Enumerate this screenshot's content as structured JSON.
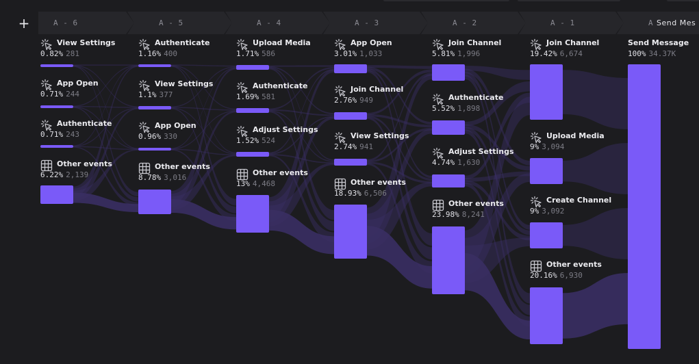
{
  "toolbar": {
    "add_label": "+"
  },
  "steps": [
    {
      "label": "A - 6"
    },
    {
      "label": "A - 5"
    },
    {
      "label": "A - 4"
    },
    {
      "label": "A - 3"
    },
    {
      "label": "A - 2"
    },
    {
      "label": "A - 1"
    },
    {
      "label": "A",
      "title": "Send Mes"
    }
  ],
  "columns": [
    {
      "nodes": [
        {
          "name": "View Settings",
          "pct": "0.82%",
          "count": "281",
          "icon": "click-icon"
        },
        {
          "name": "App Open",
          "pct": "0.71%",
          "count": "244",
          "icon": "click-icon"
        },
        {
          "name": "Authenticate",
          "pct": "0.71%",
          "count": "243",
          "icon": "click-icon"
        },
        {
          "name": "Other events",
          "pct": "6.22%",
          "count": "2,139",
          "icon": "grid-icon"
        }
      ]
    },
    {
      "nodes": [
        {
          "name": "Authenticate",
          "pct": "1.16%",
          "count": "400",
          "icon": "click-icon"
        },
        {
          "name": "View Settings",
          "pct": "1.1%",
          "count": "377",
          "icon": "click-icon"
        },
        {
          "name": "App Open",
          "pct": "0.96%",
          "count": "330",
          "icon": "click-icon"
        },
        {
          "name": "Other events",
          "pct": "8.78%",
          "count": "3,016",
          "icon": "grid-icon"
        }
      ]
    },
    {
      "nodes": [
        {
          "name": "Upload Media",
          "pct": "1.71%",
          "count": "586",
          "icon": "click-icon"
        },
        {
          "name": "Authenticate",
          "pct": "1.69%",
          "count": "581",
          "icon": "click-icon"
        },
        {
          "name": "Adjust Settings",
          "pct": "1.52%",
          "count": "524",
          "icon": "click-icon"
        },
        {
          "name": "Other events",
          "pct": "13%",
          "count": "4,468",
          "icon": "grid-icon"
        }
      ]
    },
    {
      "nodes": [
        {
          "name": "App Open",
          "pct": "3.01%",
          "count": "1,033",
          "icon": "click-icon"
        },
        {
          "name": "Join Channel",
          "pct": "2.76%",
          "count": "949",
          "icon": "click-icon"
        },
        {
          "name": "View Settings",
          "pct": "2.74%",
          "count": "941",
          "icon": "click-icon"
        },
        {
          "name": "Other events",
          "pct": "18.93%",
          "count": "6,506",
          "icon": "grid-icon"
        }
      ]
    },
    {
      "nodes": [
        {
          "name": "Join Channel",
          "pct": "5.81%",
          "count": "1,996",
          "icon": "click-icon"
        },
        {
          "name": "Authenticate",
          "pct": "5.52%",
          "count": "1,898",
          "icon": "click-icon"
        },
        {
          "name": "Adjust Settings",
          "pct": "4.74%",
          "count": "1,630",
          "icon": "click-icon"
        },
        {
          "name": "Other events",
          "pct": "23.98%",
          "count": "8,241",
          "icon": "grid-icon"
        }
      ]
    },
    {
      "nodes": [
        {
          "name": "Join Channel",
          "pct": "19.42%",
          "count": "6,674",
          "icon": "click-icon"
        },
        {
          "name": "Upload Media",
          "pct": "9%",
          "count": "3,094",
          "icon": "click-icon"
        },
        {
          "name": "Create Channel",
          "pct": "9%",
          "count": "3,092",
          "icon": "click-icon"
        },
        {
          "name": "Other events",
          "pct": "20.16%",
          "count": "6,930",
          "icon": "grid-icon"
        }
      ]
    },
    {
      "nodes": [
        {
          "name": "Send Message",
          "pct": "100%",
          "count": "34.37K",
          "icon": ""
        }
      ]
    }
  ],
  "colors": {
    "accent": "#7a5af8",
    "flow": "#3a2f63",
    "background": "#1c1c1f"
  }
}
